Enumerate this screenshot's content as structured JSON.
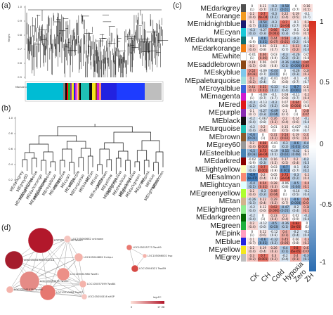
{
  "panels": {
    "a": "(a)",
    "b": "(b)",
    "c": "(c)",
    "d": "(d)"
  },
  "panel_a": {
    "ylabel": "Height",
    "yticks": [
      "1.0",
      "0.9",
      "0.8",
      "0.7",
      "0.6",
      "0.5"
    ],
    "strip_label": "Module colors"
  },
  "panel_b": {
    "yticks": [
      "1.0",
      "0.8",
      "0.6",
      "0.4",
      "0.2"
    ],
    "leaves": [
      "MEdarkgrey",
      "MEgrey60",
      "MEmidnightblue",
      "MEdarkturquoise",
      "MEdarkorange",
      "MEsaddlebrown",
      "MEpaleturquoise",
      "MEroyalblue",
      "MEorange",
      "MEskyblue",
      "MEcyan",
      "MEwhite",
      "MEpurple",
      "MEturquoise",
      "MEblack",
      "MEtan",
      "MEred",
      "MEmagenta",
      "MEbrown",
      "MEyellow",
      "MElightcyan",
      "MElightyellow",
      "MEsteelblue",
      "MEdarkred",
      "MEgreenyellow",
      "MEdarkgreen",
      "MEgreen",
      "MEpink",
      "MEblue",
      "MElightgreen",
      "MEsalmon"
    ]
  },
  "panel_c": {
    "columns": [
      "CK",
      "CH",
      "Cold",
      "Hypoxia",
      "Zero",
      "ZH"
    ],
    "colorbar_ticks": [
      "1",
      "0.5",
      "0",
      "-0.5",
      "-1"
    ],
    "modules": [
      {
        "name": "MEdarkgrey",
        "color": "#505050",
        "values": [
          -0.0,
          0.11,
          -0.3,
          -0.58,
          0.0,
          0.16
        ],
        "pvals": [
          "(1)",
          "(0.7)",
          "(0.2)",
          "(0.01)",
          "(0.7)",
          "(0.5)"
        ]
      },
      {
        "name": "MEorange",
        "color": "#f29a1f",
        "values": [
          0.2,
          0.7,
          -0.3,
          0.22,
          0.19,
          -0.1
        ],
        "pvals": [
          "(0.4)",
          "(4e-04)",
          "(0.2)",
          "(0.4)",
          "(0.5)",
          "(0.7)"
        ]
      },
      {
        "name": "MEmidnightblue",
        "color": "#191970",
        "values": [
          0.1,
          -0.54,
          -0.3,
          0.7,
          -0.1,
          0.2
        ],
        "pvals": [
          "(0.7)",
          "(0.02)",
          "(0.2)",
          "(2e-04)",
          "(0.7)",
          "(0.4)"
        ]
      },
      {
        "name": "MEcyan",
        "color": "#18c8d8",
        "values": [
          -0.3,
          -0.27,
          0.66,
          -0.27,
          -0.1,
          0.16
        ],
        "pvals": [
          "(0.3)",
          "(0.3)",
          "(0.003)",
          "(0.3)",
          "(0.6)",
          "(0.5)"
        ]
      },
      {
        "name": "MEdarkturquoise",
        "color": "#0f6f6f",
        "values": [
          0.0,
          -0.6,
          0.44,
          0.58,
          -0.3,
          -0.14
        ],
        "pvals": [
          "(0.9)",
          "(0.01)",
          "(0.07)",
          "(0.01)",
          "(0.2)",
          "(0.6)"
        ]
      },
      {
        "name": "MEdarkorange",
        "color": "#f07c14",
        "values": [
          0.2,
          0.06,
          0.11,
          -0.1,
          0.33,
          -0.23
        ],
        "pvals": [
          "(0.4)",
          "(0.8)",
          "(0.7)",
          "(0.7)",
          "(0.2)",
          "(0.4)"
        ]
      },
      {
        "name": "MEwhite",
        "color": "#ffffff",
        "values": [
          -0.01,
          0.46,
          0.03,
          -0.3,
          -0.26,
          0.05
        ],
        "pvals": [
          "(1)",
          "(0.06)",
          "(0.9)",
          "(0.2)",
          "(0.3)",
          "(0.8)"
        ]
      },
      {
        "name": "MEsaddlebrown",
        "color": "#8b4513",
        "values": [
          0.19,
          0.06,
          0.07,
          -0.36,
          -0.62,
          0.65
        ],
        "pvals": [
          "(0.5)",
          "(0.8)",
          "(0.8)",
          "(0.1)",
          "(0.006)",
          "(0.004)"
        ]
      },
      {
        "name": "MEskyblue",
        "color": "#7ec8ec",
        "values": [
          0.52,
          -0.09,
          -0.44,
          0.0,
          -0.26,
          0.26
        ],
        "pvals": [
          "(0.03)",
          "(0.7)",
          "(0.07)",
          "(1)",
          "(0.3)",
          "(0.3)"
        ]
      },
      {
        "name": "MEpaleturquoise",
        "color": "#9fdede",
        "values": [
          0.3,
          -0.2,
          -0.01,
          0.07,
          -0.1,
          -0.1
        ],
        "pvals": [
          "(0.2)",
          "(0.4)",
          "(1)",
          "(0.8)",
          "(0.7)",
          "(0.7)"
        ]
      },
      {
        "name": "MEroyalblue",
        "color": "#3a62d8",
        "values": [
          0.41,
          0.55,
          -0.33,
          -0.2,
          -0.7,
          0.15
        ],
        "pvals": [
          "(0.1)",
          "(0.02)",
          "(0.2)",
          "(0.4)",
          "(0.001)",
          "(0.5)"
        ]
      },
      {
        "name": "MEmagenta",
        "color": "#d01ad0",
        "values": [
          0.0,
          -0.09,
          -0.1,
          0.08,
          -0.11,
          0.2
        ],
        "pvals": [
          "(1)",
          "(0.7)",
          "(0.7)",
          "(0.8)",
          "(0.7)",
          "(0.4)"
        ]
      },
      {
        "name": "MEred",
        "color": "#e01818",
        "values": [
          -0.3,
          -0.13,
          -0.3,
          0.07,
          0.64,
          0.07
        ],
        "pvals": [
          "(0.2)",
          "(0.6)",
          "(0.2)",
          "(0.8)",
          "(0.004)",
          "(0.8)"
        ]
      },
      {
        "name": "MEpurple",
        "color": "#8a2bb0",
        "values": [
          0.1,
          -0.27,
          -0.49,
          0.1,
          0.0,
          0.46
        ],
        "pvals": [
          "(0.7)",
          "(0.3)",
          "(0.04)",
          "(0.7)",
          "(1)",
          "(0.05)"
        ]
      },
      {
        "name": "MEblack",
        "color": "#111111",
        "values": [
          -0.2,
          -0.067,
          0.26,
          0.2,
          0.14,
          -0.2
        ],
        "pvals": [
          "(0.4)",
          "(0.8)",
          "(0.3)",
          "(0.4)",
          "(0.6)",
          "(0.4)"
        ]
      },
      {
        "name": "MEturquoise",
        "color": "#1fc0b4",
        "values": [
          -0.2,
          0.2,
          0.01,
          0.15,
          -0.027,
          -0.1
        ],
        "pvals": [
          "(0.4)",
          "(0.4)",
          "(1)",
          "(0.5)",
          "(0.9)",
          "(0.7)"
        ]
      },
      {
        "name": "MEbrown",
        "color": "#8b5a2b",
        "values": [
          -0.6,
          0.0,
          0.31,
          0.54,
          0.19,
          0.31
        ],
        "pvals": [
          "(0.01)",
          "(1)",
          "(0.2)",
          "(0.02)",
          "(0.5)",
          "(0.2)"
        ]
      },
      {
        "name": "MEgrey60",
        "color": "#999999",
        "values": [
          0.2,
          0.68,
          -0.01,
          -0.3,
          -0.6,
          -0.43
        ],
        "pvals": [
          "(0.4)",
          "(0.002)",
          "(1)",
          "(0.2)",
          "(0.01)",
          "(0.07)"
        ]
      },
      {
        "name": "MEsteelblue",
        "color": "#4682b4",
        "values": [
          -0.5,
          0.75,
          -0.19,
          -0.55,
          -0.42,
          0.1
        ],
        "pvals": [
          "(0.03)",
          "(3e-04)",
          "(0.5)",
          "(0.02)",
          "(0.08)",
          "(0.7)"
        ]
      },
      {
        "name": "MEdarkred",
        "color": "#8b0000",
        "values": [
          -0.02,
          -0.28,
          0.16,
          0.17,
          0.2,
          -0.28
        ],
        "pvals": [
          "(0.9)",
          "(0.3)",
          "(0.5)",
          "(0.5)",
          "(0.4)",
          "(0.3)"
        ]
      },
      {
        "name": "MElightyellow",
        "color": "#ffffb8",
        "values": [
          -0.2,
          0.7,
          0.03,
          -0.7,
          -0.1,
          -0.29
        ],
        "pvals": [
          "(0.4)",
          "(0.001)",
          "(0.9)",
          "(0.001)",
          "(0.7)",
          "(0.2)"
        ]
      },
      {
        "name": "MEsalmon",
        "color": "#fa8a72",
        "values": [
          -0.9,
          0.2,
          0.05,
          0.75,
          -0.3,
          0.2
        ],
        "pvals": [
          "(4e-07)",
          "(0.4)",
          "(0.8)",
          "(3e-04)",
          "(0.2)",
          "(0.4)"
        ]
      },
      {
        "name": "MElightcyan",
        "color": "#e0ffff",
        "values": [
          -0.4,
          0.54,
          0.28,
          -0.06,
          -0.5,
          0.4
        ],
        "pvals": [
          "(0.1)",
          "(0.02)",
          "(0.3)",
          "(0.8)",
          "(0.04)",
          "(0.1)"
        ]
      },
      {
        "name": "MEgreenyellow",
        "color": "#adff2f",
        "values": [
          0.2,
          -0.3,
          0.48,
          0.0,
          -0.16,
          -0.2
        ],
        "pvals": [
          "(0.4)",
          "(0.2)",
          "(0.04)",
          "(1)",
          "(0.5)",
          "(0.4)"
        ]
      },
      {
        "name": "MEtan",
        "color": "#d2b48c",
        "values": [
          -0.26,
          0.22,
          0.29,
          0.11,
          -0.6,
          0.48
        ],
        "pvals": [
          "(0.3)",
          "(0.4)",
          "(0.2)",
          "(0.7)",
          "(0.008)",
          "(0.04)"
        ]
      },
      {
        "name": "MElightgreen",
        "color": "#90ee90",
        "values": [
          -0.2,
          0.12,
          0.62,
          -0.47,
          -0.2,
          0.38
        ],
        "pvals": [
          "(0.4)",
          "(0.6)",
          "(0.006)",
          "(0.05)",
          "(0.4)",
          "(0.1)"
        ]
      },
      {
        "name": "MEdarkgreen",
        "color": "#006400",
        "values": [
          -0.2,
          -0.0,
          0.23,
          0.2,
          0.02,
          -0.2
        ],
        "pvals": [
          "(0.4)",
          "(1)",
          "(0.4)",
          "(0.4)",
          "(0.9)",
          "(0.4)"
        ]
      },
      {
        "name": "MEgreen",
        "color": "#1fb03c",
        "values": [
          0.2,
          -0.12,
          -0.5,
          -0.36,
          0.82,
          0.0
        ],
        "pvals": [
          "(0.4)",
          "(0.6)",
          "(0.03)",
          "(0.1)",
          "(3e-05)",
          "(1)"
        ]
      },
      {
        "name": "MEpink",
        "color": "#ff9ec0",
        "values": [
          0.0,
          0.12,
          -0.12,
          0.4,
          -0.2,
          -0.2
        ],
        "pvals": [
          "(1)",
          "(0.6)",
          "(0.6)",
          "(0.1)",
          "(0.4)",
          "(0.4)"
        ]
      },
      {
        "name": "MEblue",
        "color": "#2222e0",
        "values": [
          0.1,
          -0.6,
          -0.32,
          0.45,
          0.06,
          0.3
        ],
        "pvals": [
          "(0.7)",
          "(0.01)",
          "(0.2)",
          "(0.06)",
          "(0.8)",
          "(0.2)"
        ]
      },
      {
        "name": "MEyellow",
        "color": "#f4e81c",
        "values": [
          0.2,
          0.19,
          0.26,
          -0.4,
          0.8,
          0.41
        ],
        "pvals": [
          "(0.4)",
          "(0.4)",
          "(0.3)",
          "(0.1)",
          "(6e-05)",
          "(0.09)"
        ]
      },
      {
        "name": "MEgrey",
        "color": "#bebebe",
        "values": [
          0.3,
          0.7,
          0.3,
          -0.2,
          0.4,
          -0.36
        ],
        "pvals": [
          "(0.2)",
          "(0.001)",
          "(0.2)",
          "(0.4)",
          "(0.1)",
          "(0.1)"
        ]
      }
    ]
  },
  "panel_d": {
    "nodes": [
      {
        "label": "LOC105054556 TwoH9"
      },
      {
        "label": "LOC105041984 OsCOL6"
      },
      {
        "label": "LOC105054574 TwoH4"
      },
      {
        "label": "LOC105060682 unknown"
      },
      {
        "label": "LOC105044862 fncbp-c"
      },
      {
        "label": "LOC105061988 TwoH1"
      },
      {
        "label": "LOC10510688 TwoB7"
      },
      {
        "label": "LOC105057099 TwoB4"
      },
      {
        "label": "LOC105054316 sHSP"
      },
      {
        "label": "LOC105061076 TwoH6"
      },
      {
        "label": "LOC105055773 TwoH9"
      },
      {
        "label": "LOC105066002 hsp"
      },
      {
        "label": "LOC10504321 TwoB9"
      }
    ],
    "legend_title": "log₂FC",
    "legend_min": "0",
    "legend_max": "17.98"
  }
}
